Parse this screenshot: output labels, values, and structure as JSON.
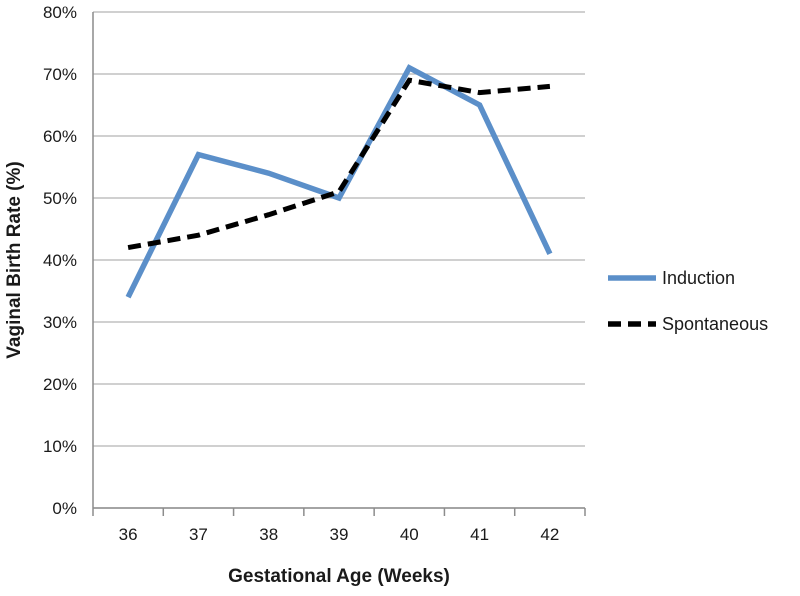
{
  "chart_data": {
    "type": "line",
    "title": "",
    "xlabel": "Gestational Age (Weeks)",
    "ylabel": "Vaginal Birth Rate (%)",
    "categories": [
      "36",
      "37",
      "38",
      "39",
      "40",
      "41",
      "42"
    ],
    "ylim": [
      0,
      80
    ],
    "yticks": [
      "0%",
      "10%",
      "20%",
      "30%",
      "40%",
      "50%",
      "60%",
      "70%",
      "80%"
    ],
    "grid": true,
    "legend_position": "right",
    "series": [
      {
        "name": "Induction",
        "values": [
          34,
          57,
          54,
          50,
          71,
          65,
          41
        ],
        "color": "#5b8fc9",
        "style": "solid"
      },
      {
        "name": "Spontaneous",
        "values": [
          42,
          44,
          47.3,
          51,
          69,
          67,
          68
        ],
        "color": "#000000",
        "style": "dashed"
      }
    ]
  }
}
